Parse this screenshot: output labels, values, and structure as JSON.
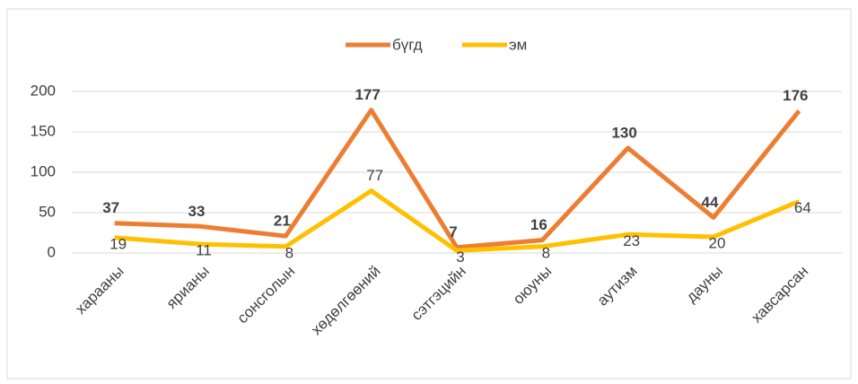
{
  "chart_data": {
    "type": "line",
    "categories": [
      "харааны",
      "ярианы",
      "сонсголын",
      "хөдөлгөөний",
      "сэтгэцийн",
      "оюуны",
      "аутизм",
      "дауны",
      "хавсарсан"
    ],
    "series": [
      {
        "name": "бүгд",
        "color": "#ED7D31",
        "values": [
          37,
          33,
          21,
          177,
          7,
          16,
          130,
          44,
          176
        ]
      },
      {
        "name": "эм",
        "color": "#FFC000",
        "values": [
          19,
          11,
          8,
          77,
          3,
          8,
          23,
          20,
          64
        ]
      }
    ],
    "ylim": [
      0,
      200
    ],
    "yticks": [
      0,
      50,
      100,
      150,
      200
    ],
    "grid": true,
    "legend": "top"
  }
}
